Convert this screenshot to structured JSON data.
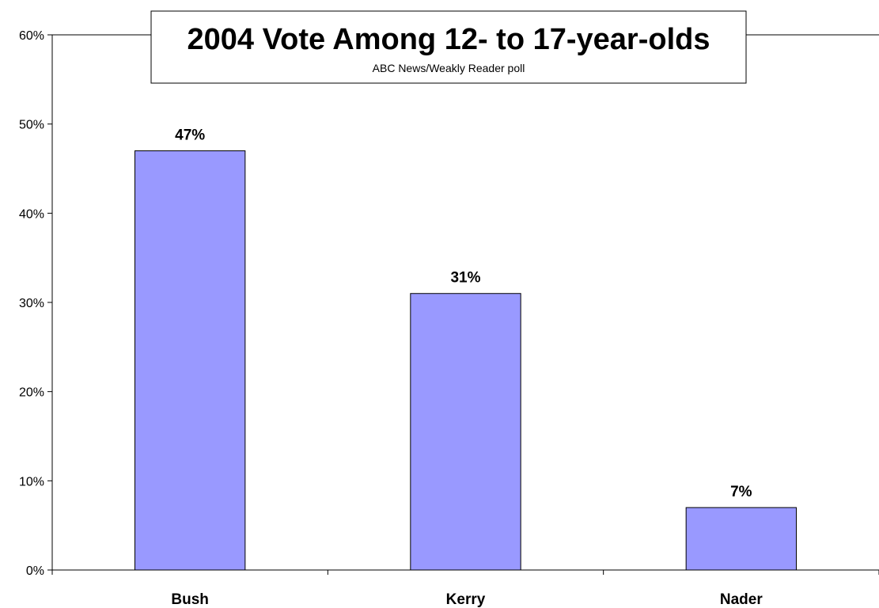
{
  "chart_data": {
    "type": "bar",
    "title": "2004 Vote Among 12- to 17-year-olds",
    "subtitle": "ABC News/Weakly Reader poll",
    "categories": [
      "Bush",
      "Kerry",
      "Nader"
    ],
    "values": [
      47,
      31,
      7
    ],
    "data_labels": [
      "47%",
      "31%",
      "7%"
    ],
    "y_tick_labels": [
      "0%",
      "10%",
      "20%",
      "30%",
      "40%",
      "50%",
      "60%"
    ],
    "ylim": [
      0,
      60
    ],
    "y_ticks": [
      0,
      10,
      20,
      30,
      40,
      50,
      60
    ],
    "xlabel": "",
    "ylabel": "",
    "grid": false,
    "legend": "none",
    "bar_color": "#9999ff",
    "bar_stroke": "#000000"
  }
}
